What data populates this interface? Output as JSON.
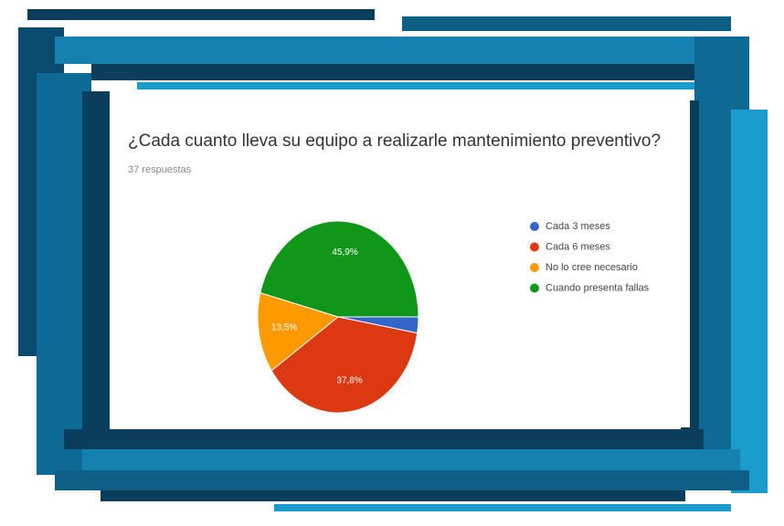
{
  "chart_data": {
    "type": "pie",
    "title": "¿Cada cuanto lleva su equipo a realizarle mantenimiento preventivo?",
    "subtitle": "37 respuestas",
    "categories": [
      "Cada 3 meses",
      "Cada 6 meses",
      "No lo cree necesario",
      "Cuando presenta fallas"
    ],
    "values": [
      2.7,
      37.8,
      13.5,
      45.9
    ],
    "value_labels": [
      null,
      "37,8%",
      "13,5%",
      "45,9%"
    ],
    "colors": [
      "#3366cc",
      "#dc3912",
      "#ff9900",
      "#109618"
    ]
  }
}
